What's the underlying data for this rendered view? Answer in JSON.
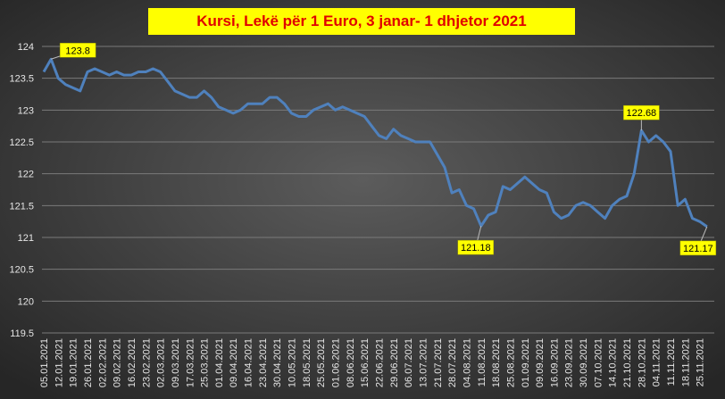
{
  "chart_data": {
    "type": "line",
    "title": "Kursi,  Lekë për 1 Euro, 3 janar-  1 dhjetor  2021",
    "categories": [
      "05.01.2021",
      null,
      "12.01.2021",
      null,
      "19.01.2021",
      null,
      "26.01.2021",
      null,
      "02.02.2021",
      null,
      "09.02.2021",
      null,
      "16.02.2021",
      null,
      "23.02.2021",
      null,
      "02.03.2021",
      null,
      "09.03.2021",
      null,
      "17.03.2021",
      null,
      "25.03.2021",
      null,
      "01.04.2021",
      null,
      "09.04.2021",
      null,
      "16.04.2021",
      null,
      "23.04.2021",
      null,
      "30.04.2021",
      null,
      "10.05.2021",
      null,
      "18.05.2021",
      null,
      "25.05.2021",
      null,
      "01.06.2021",
      null,
      "08.06.2021",
      null,
      "15.06.2021",
      null,
      "22.06.2021",
      null,
      "29.06.2021",
      null,
      "06.07.2021",
      null,
      "13.07.2021",
      null,
      "21.07.2021",
      null,
      "28.07.2021",
      null,
      "04.08.2021",
      null,
      "11.08.2021",
      null,
      "18.08.2021",
      null,
      "25.08.2021",
      null,
      "01.09.2021",
      null,
      "09.09.2021",
      null,
      "16.09.2021",
      null,
      "23.09.2021",
      null,
      "30.09.2021",
      null,
      "07.10.2021",
      null,
      "14.10.2021",
      null,
      "21.10.2021",
      null,
      "28.10.2021",
      null,
      "04.11.2021",
      null,
      "11.11.2021",
      null,
      "18.11.2021",
      null,
      "25.11.2021",
      null
    ],
    "values": [
      123.6,
      123.8,
      123.5,
      123.4,
      123.35,
      123.3,
      123.6,
      123.65,
      123.6,
      123.55,
      123.6,
      123.55,
      123.55,
      123.6,
      123.6,
      123.65,
      123.6,
      123.45,
      123.3,
      123.25,
      123.2,
      123.2,
      123.3,
      123.2,
      123.05,
      123.0,
      122.95,
      123.0,
      123.1,
      123.1,
      123.1,
      123.2,
      123.2,
      123.1,
      122.95,
      122.9,
      122.9,
      123.0,
      123.05,
      123.1,
      123.0,
      123.05,
      123.0,
      122.95,
      122.9,
      122.75,
      122.6,
      122.55,
      122.7,
      122.6,
      122.55,
      122.5,
      122.5,
      122.5,
      122.3,
      122.1,
      121.7,
      121.75,
      121.5,
      121.45,
      121.18,
      121.35,
      121.4,
      121.8,
      121.75,
      121.85,
      121.95,
      121.85,
      121.75,
      121.7,
      121.4,
      121.3,
      121.35,
      121.5,
      121.55,
      121.5,
      121.4,
      121.3,
      121.5,
      121.6,
      121.65,
      122.0,
      122.68,
      122.5,
      122.6,
      122.5,
      122.35,
      121.5,
      121.6,
      121.3,
      121.25,
      121.17
    ],
    "value_labels": [
      null,
      "123.8",
      null,
      null,
      null,
      null,
      null,
      null,
      null,
      null,
      null,
      null,
      null,
      null,
      null,
      null,
      null,
      null,
      null,
      null,
      null,
      null,
      null,
      null,
      null,
      null,
      null,
      null,
      null,
      null,
      null,
      null,
      null,
      null,
      null,
      null,
      null,
      null,
      null,
      null,
      null,
      null,
      null,
      null,
      null,
      null,
      null,
      null,
      null,
      null,
      null,
      null,
      null,
      null,
      null,
      null,
      null,
      null,
      null,
      null,
      "121.18",
      null,
      null,
      null,
      null,
      null,
      null,
      null,
      null,
      null,
      null,
      null,
      null,
      null,
      null,
      null,
      null,
      null,
      null,
      null,
      null,
      null,
      "122.68",
      null,
      null,
      null,
      null,
      null,
      null,
      null,
      null,
      "121.17"
    ],
    "color": "#4f81bd",
    "ylim": [
      119.5,
      124
    ],
    "yticks": [
      119.5,
      120,
      120.5,
      121,
      121.5,
      122,
      122.5,
      123,
      123.5,
      124
    ],
    "grid": true
  }
}
